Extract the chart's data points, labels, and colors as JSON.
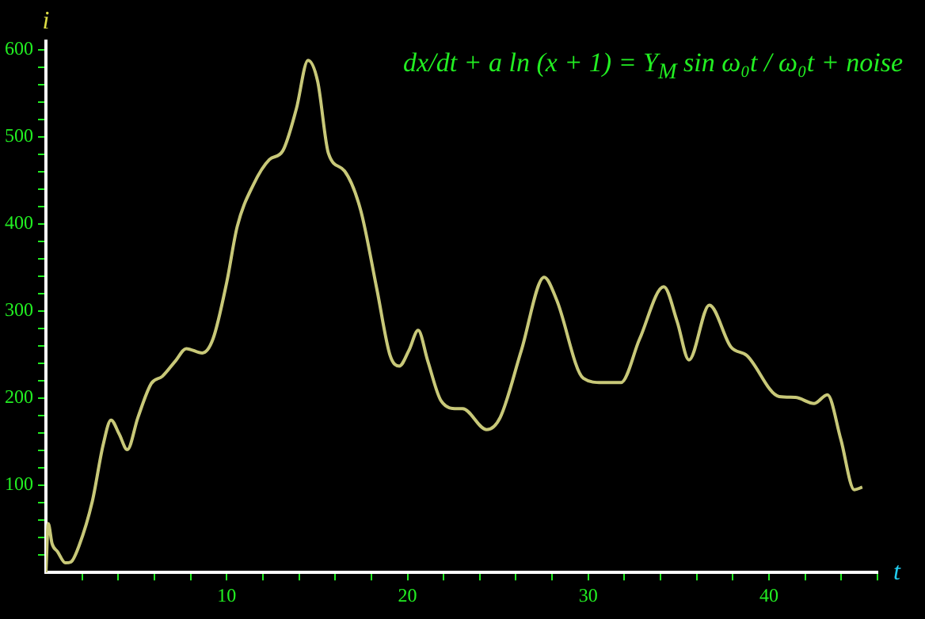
{
  "chart_data": {
    "type": "line",
    "xlabel": "t",
    "ylabel": "i",
    "annotations": [
      "dx/dt + a ln (x + 1) = Y$_{M}$ sin ω₀t / ω₀t + noise"
    ],
    "xlim": [
      0,
      46
    ],
    "ylim": [
      0,
      610
    ],
    "xticks": [
      {
        "value": 2,
        "label": null
      },
      {
        "value": 4,
        "label": null
      },
      {
        "value": 6,
        "label": null
      },
      {
        "value": 8,
        "label": null
      },
      10,
      {
        "value": 12,
        "label": null
      },
      {
        "value": 14,
        "label": null
      },
      {
        "value": 16,
        "label": null
      },
      {
        "value": 18,
        "label": null
      },
      20,
      {
        "value": 22,
        "label": null
      },
      {
        "value": 24,
        "label": null
      },
      {
        "value": 26,
        "label": null
      },
      {
        "value": 28,
        "label": null
      },
      30,
      {
        "value": 32,
        "label": null
      },
      {
        "value": 34,
        "label": null
      },
      {
        "value": 36,
        "label": null
      },
      {
        "value": 38,
        "label": null
      },
      40,
      {
        "value": 42,
        "label": null
      },
      {
        "value": 44,
        "label": null
      },
      {
        "value": 46,
        "label": null
      }
    ],
    "yticks": [
      {
        "value": 20,
        "label": null
      },
      {
        "value": 40,
        "label": null
      },
      {
        "value": 60,
        "label": null
      },
      {
        "value": 80,
        "label": null
      },
      100,
      {
        "value": 120,
        "label": null
      },
      {
        "value": 140,
        "label": null
      },
      {
        "value": 160,
        "label": null
      },
      {
        "value": 180,
        "label": null
      },
      200,
      {
        "value": 220,
        "label": null
      },
      {
        "value": 240,
        "label": null
      },
      {
        "value": 260,
        "label": null
      },
      {
        "value": 280,
        "label": null
      },
      300,
      {
        "value": 320,
        "label": null
      },
      {
        "value": 340,
        "label": null
      },
      {
        "value": 360,
        "label": null
      },
      {
        "value": 380,
        "label": null
      },
      400,
      {
        "value": 420,
        "label": null
      },
      {
        "value": 440,
        "label": null
      },
      {
        "value": 460,
        "label": null
      },
      {
        "value": 480,
        "label": null
      },
      500,
      {
        "value": 520,
        "label": null
      },
      {
        "value": 540,
        "label": null
      },
      {
        "value": 560,
        "label": null
      },
      {
        "value": 580,
        "label": null
      },
      600
    ],
    "grid": false,
    "legend": false,
    "marker": "none",
    "line_style": "solid",
    "series": [
      {
        "color": "#c8c878",
        "x": [
          0,
          0.13,
          0.34,
          0.64,
          1.08,
          1.38,
          1.82,
          2.57,
          3.16,
          3.6,
          4.05,
          4.5,
          5.09,
          5.83,
          6.43,
          7.17,
          7.76,
          8.65,
          9.24,
          10,
          10.58,
          11.47,
          12.36,
          13.1,
          13.85,
          14.5,
          15.03,
          15.63,
          16.52,
          17.41,
          18.3,
          19.04,
          19.55,
          20.08,
          20.59,
          21.12,
          21.86,
          22.75,
          23.05,
          24.38,
          25.13,
          26.3,
          27.56,
          28.25,
          29.73,
          30.77,
          31.81,
          32.84,
          34.18,
          34.92,
          35.57,
          36.7,
          37.89,
          38.78,
          40.56,
          41.45,
          42.49,
          43.23,
          43.97,
          44.72,
          45.16
        ],
        "values": [
          0,
          56,
          33,
          24,
          11,
          12,
          30,
          82,
          146,
          175,
          159,
          141,
          178,
          217,
          225,
          243,
          257,
          252,
          268,
          333,
          397,
          445,
          474,
          484,
          532,
          588,
          564,
          481,
          461,
          416,
          326,
          249,
          237,
          255,
          278,
          243,
          197,
          188,
          188,
          164,
          178,
          255,
          339,
          313,
          223,
          218,
          218,
          268,
          328,
          288,
          244,
          307,
          259,
          249,
          202,
          201,
          194,
          204,
          153,
          95,
          98
        ]
      }
    ]
  }
}
